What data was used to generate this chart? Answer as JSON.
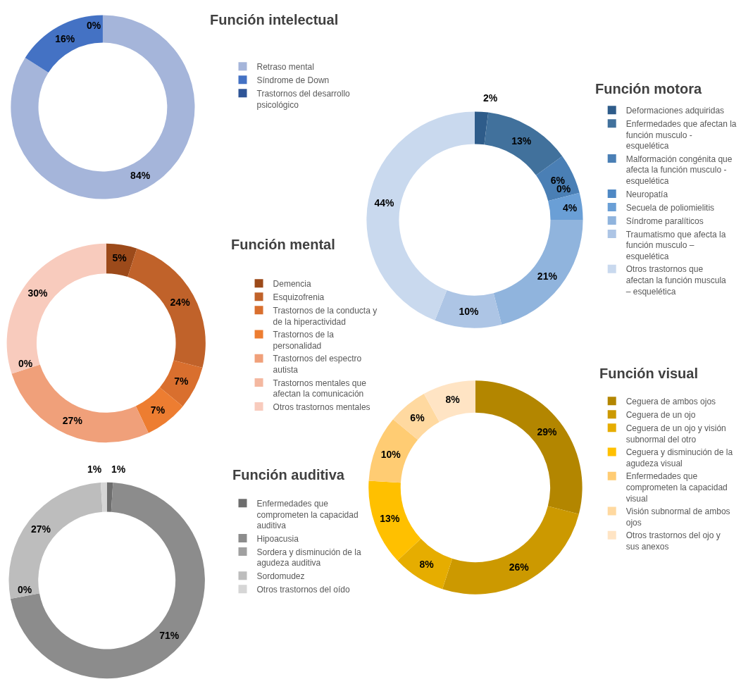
{
  "chart_data": [
    {
      "type": "donut",
      "title": "Función intelectual",
      "legend": "right",
      "categories": [
        "Retraso mental",
        "Síndrome de Down",
        "Trastornos del desarrollo psicológico"
      ],
      "values": [
        84,
        16,
        0
      ],
      "value_labels": [
        "84%",
        "16%",
        "0%"
      ],
      "colors": [
        "#a5b5da",
        "#4472c4",
        "#2f5597"
      ]
    },
    {
      "type": "donut",
      "title": "Función motora",
      "legend": "right",
      "categories": [
        "Deformaciones adquiridas",
        "Enfermedades que afectan la función musculo - esquelética",
        "Malformación congénita que afecta la función musculo - esquelética",
        "Neuropatía",
        "Secuela de poliomielitis",
        "Síndrome paralíticos",
        "Traumatismo que afecta la función musculo – esquelética",
        "Otros trastornos que afectan la función muscula – esquelética"
      ],
      "values": [
        2,
        13,
        6,
        0,
        4,
        21,
        10,
        44
      ],
      "value_labels": [
        "2%",
        "13%",
        "6%",
        "0%",
        "4%",
        "21%",
        "10%",
        "44%"
      ],
      "colors": [
        "#2e5c8a",
        "#41719c",
        "#4a7fb5",
        "#4e88c4",
        "#6a9fd6",
        "#90b4dd",
        "#adc5e5",
        "#c9d9ee"
      ]
    },
    {
      "type": "donut",
      "title": "Función mental",
      "legend": "right",
      "categories": [
        "Demencia",
        "Esquizofrenia",
        "Trastornos de la conducta y de la hiperactividad",
        "Trastornos de la personalidad",
        "Trastornos del espectro autista",
        "Trastornos mentales que afectan la comunicación",
        "Otros trastornos mentales"
      ],
      "values": [
        5,
        24,
        7,
        7,
        27,
        0,
        30
      ],
      "value_labels": [
        "5%",
        "24%",
        "7%",
        "7%",
        "27%",
        "0%",
        "30%"
      ],
      "colors": [
        "#9c4a1a",
        "#c0622a",
        "#d96f2e",
        "#ed7d31",
        "#f0a07a",
        "#f4b8a0",
        "#f8cbbd"
      ]
    },
    {
      "type": "donut",
      "title": "Función visual",
      "legend": "right",
      "categories": [
        "Ceguera de ambos ojos",
        "Ceguera de un ojo",
        "Ceguera de un ojo y visión subnormal del otro",
        "Ceguera y disminución de la agudeza visual",
        "Enfermedades que comprometen la capacidad visual",
        "Visión subnormal de ambos ojos",
        "Otros trastornos del ojo y sus anexos"
      ],
      "values": [
        29,
        26,
        8,
        13,
        10,
        6,
        8
      ],
      "value_labels": [
        "29%",
        "26%",
        "8%",
        "13%",
        "10%",
        "6%",
        "8%"
      ],
      "colors": [
        "#b38600",
        "#cc9900",
        "#e6ad00",
        "#ffc000",
        "#ffcc73",
        "#ffd9a0",
        "#ffe4c4"
      ]
    },
    {
      "type": "donut",
      "title": "Función auditiva",
      "legend": "right",
      "categories": [
        "Enfermedades que comprometen la capacidad auditiva",
        "Hipoacusia",
        "Sordera y disminución de la agudeza auditiva",
        "Sordomudez",
        "Otros trastornos del oído"
      ],
      "values": [
        1,
        71,
        0,
        27,
        1
      ],
      "value_labels": [
        "1%",
        "71%",
        "0%",
        "27%",
        "1%"
      ],
      "colors": [
        "#6e6e6e",
        "#8c8c8c",
        "#a0a0a0",
        "#bdbdbd",
        "#d6d6d6"
      ]
    }
  ]
}
